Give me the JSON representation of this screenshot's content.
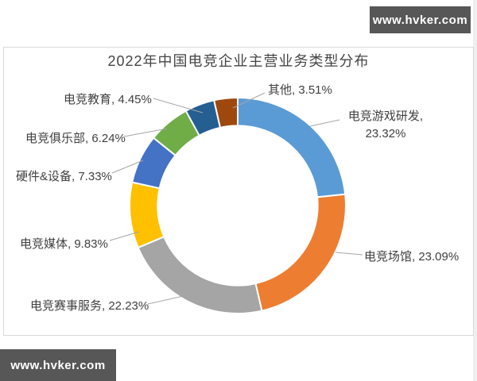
{
  "watermarks": {
    "top_right": "www.hvker.com",
    "bottom_left": "www.hvker.com"
  },
  "chart_data": {
    "type": "pie",
    "subtype": "donut",
    "title": "2022年中国电竞企业主营业务类型分布",
    "unit": "%",
    "start_angle_deg": 0,
    "direction": "clockwise",
    "inner_radius_ratio": 0.74,
    "legend_position": "none",
    "label_format": "{label}, {value}%",
    "leader_line_color": "#a6a6a6",
    "segment_gap_color": "#ffffff",
    "segments": [
      {
        "label": "电竞游戏研发",
        "value": 23.32,
        "color": "#5B9BD5"
      },
      {
        "label": "电竞场馆",
        "value": 23.09,
        "color": "#ED7D31"
      },
      {
        "label": "电竞赛事服务",
        "value": 22.23,
        "color": "#A5A5A5"
      },
      {
        "label": "电竞媒体",
        "value": 9.83,
        "color": "#FFC000"
      },
      {
        "label": "硬件&设备",
        "value": 7.33,
        "color": "#4472C4"
      },
      {
        "label": "电竞俱乐部",
        "value": 6.24,
        "color": "#70AD47"
      },
      {
        "label": "电竞教育",
        "value": 4.45,
        "color": "#255E91"
      },
      {
        "label": "其他",
        "value": 3.51,
        "color": "#9E480E"
      }
    ]
  }
}
